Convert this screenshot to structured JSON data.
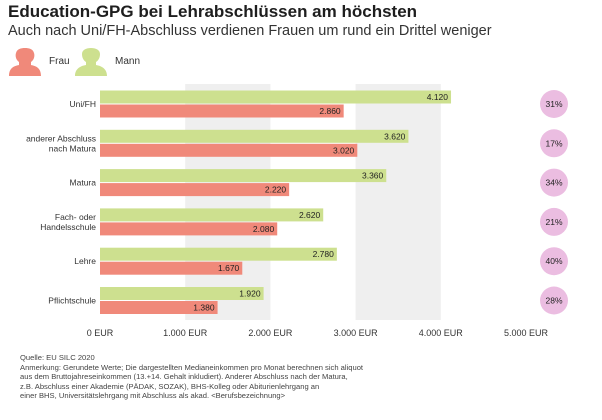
{
  "header": {
    "title": "Education-GPG bei Lehrabschlüssen am höchsten",
    "subtitle": "Auch nach Uni/FH-Abschluss verdienen Frauen um rund ein Drittel weniger"
  },
  "legend": {
    "frau": "Frau",
    "mann": "Mann"
  },
  "colors": {
    "frau": "#f0897a",
    "mann": "#cde08f",
    "badge": "#ebbde1",
    "grid_band": "#efefef"
  },
  "chart_data": {
    "type": "bar",
    "orientation": "horizontal",
    "categories": [
      "Uni/FH",
      "anderer Abschluss nach Matura",
      "Matura",
      "Fach- oder Handelsschule",
      "Lehre",
      "Pflichtschule"
    ],
    "category_lines": [
      [
        "Uni/FH"
      ],
      [
        "anderer Abschluss",
        "nach Matura"
      ],
      [
        "Matura"
      ],
      [
        "Fach- oder",
        "Handelsschule"
      ],
      [
        "Lehre"
      ],
      [
        "Pflichtschule"
      ]
    ],
    "series": [
      {
        "name": "Mann",
        "values": [
          4120,
          3620,
          3360,
          2620,
          2780,
          1920
        ],
        "labels": [
          "4.120",
          "3.620",
          "3.360",
          "2.620",
          "2.780",
          "1.920"
        ]
      },
      {
        "name": "Frau",
        "values": [
          2860,
          3020,
          2220,
          2080,
          1670,
          1380
        ],
        "labels": [
          "2.860",
          "3.020",
          "2.220",
          "2.080",
          "1.670",
          "1.380"
        ]
      }
    ],
    "gaps": [
      "31%",
      "17%",
      "34%",
      "21%",
      "40%",
      "28%"
    ],
    "xlim": [
      0,
      5000
    ],
    "xticks": [
      0,
      1000,
      2000,
      3000,
      4000,
      5000
    ],
    "xtick_labels": [
      "0 EUR",
      "1.000 EUR",
      "2.000 EUR",
      "3.000 EUR",
      "4.000 EUR",
      "5.000 EUR"
    ],
    "grid": "alternating vertical bands"
  },
  "notes": {
    "source": "Quelle: EU SILC 2020",
    "lines": [
      "Anmerkung: Gerundete Werte; Die dargestellten Medianeinkommen pro Monat berechnen sich aliquot",
      "aus dem Bruttojahreseinkommen (13.+14. Gehalt inkludiert). Anderer Abschluss nach der Matura,",
      "z.B. Abschluss einer Akademie (PÄDAK, SOZAK), BHS-Kolleg oder Abiturienlehrgang an",
      "einer BHS, Universitätslehrgang mit Abschluss als akad. <Berufsbezeichnung>"
    ]
  }
}
